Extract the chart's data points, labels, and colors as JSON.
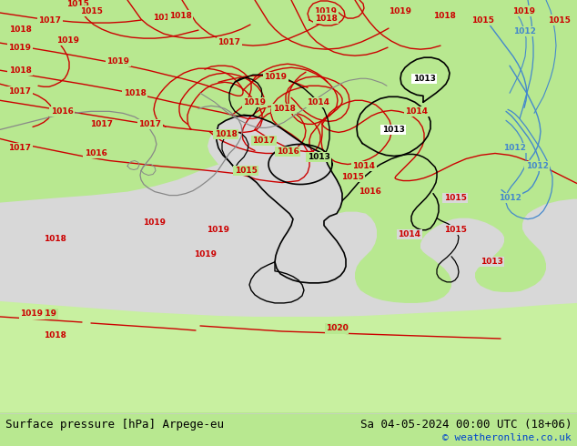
{
  "title_left": "Surface pressure [hPa] Arpege-eu",
  "title_right": "Sa 04-05-2024 00:00 UTC (18+06)",
  "watermark": "© weatheronline.co.uk",
  "bg_land_color": "#b8e890",
  "sea_color": "#d8d8d8",
  "africa_land_color": "#c8f0a0",
  "isobar_color_red": "#cc0000",
  "isobar_color_black": "#000000",
  "isobar_color_blue": "#0000cc",
  "coast_color_black": "#000000",
  "coast_color_gray": "#888888",
  "coast_color_blue": "#4488cc",
  "text_color_left": "#000000",
  "text_color_right": "#000000",
  "watermark_color": "#0044cc",
  "font_size_title": 9,
  "font_size_watermark": 8,
  "fig_width": 6.34,
  "fig_height": 4.9,
  "dpi": 100
}
